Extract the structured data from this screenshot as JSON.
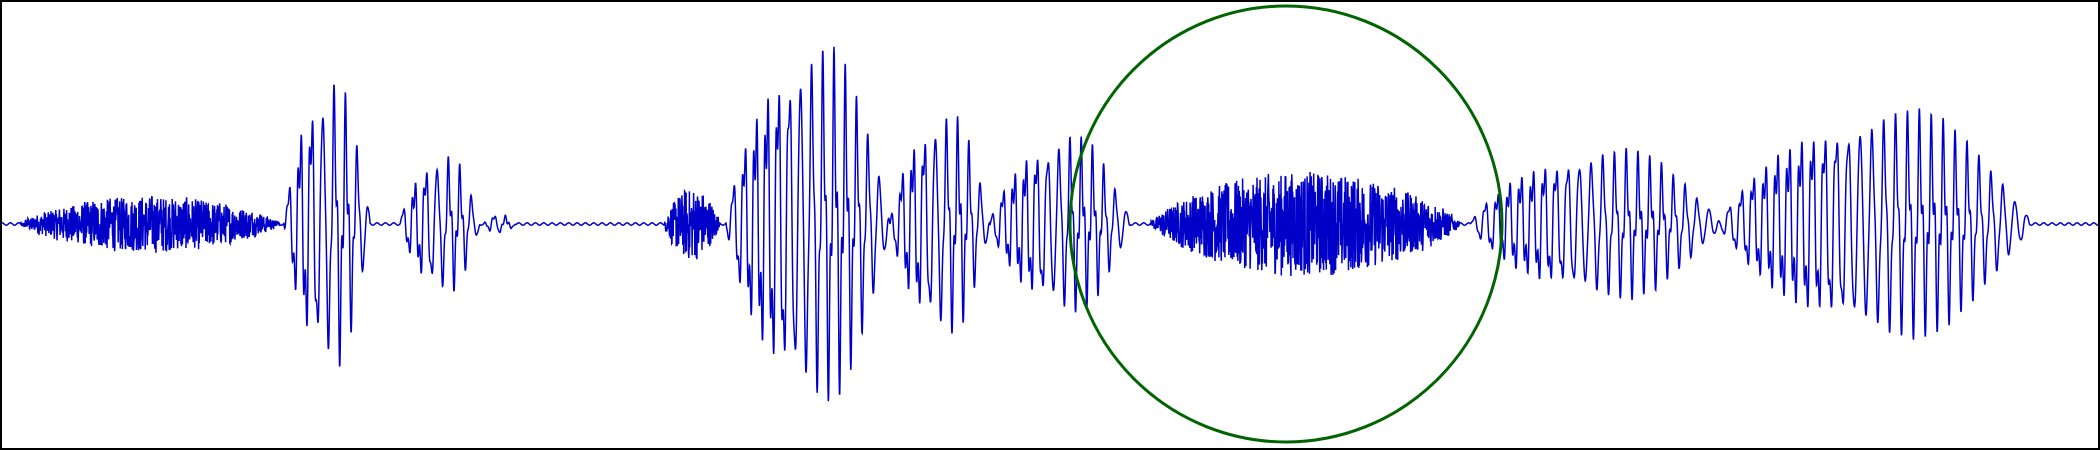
{
  "chart_data": {
    "type": "line",
    "title": "",
    "xlabel": "",
    "ylabel": "",
    "axes_visible": false,
    "frame": true,
    "grid": false,
    "legend": "none",
    "xlim": [
      0,
      1.05
    ],
    "ylim": [
      -1,
      1
    ],
    "series": [
      {
        "color": "#0000c8",
        "segments": [
          {
            "kind": "noise",
            "start": 0.01,
            "end": 0.14,
            "peak": 0.14,
            "freq": 1500
          },
          {
            "kind": "voiced",
            "start": 0.142,
            "end": 0.185,
            "peak": 0.72,
            "freq": 175
          },
          {
            "kind": "voiced",
            "start": 0.2,
            "end": 0.24,
            "peak": 0.35,
            "freq": 175
          },
          {
            "kind": "voiced",
            "start": 0.242,
            "end": 0.258,
            "peak": 0.05,
            "freq": 175
          },
          {
            "kind": "noise",
            "start": 0.332,
            "end": 0.36,
            "peak": 0.18,
            "freq": 1500
          },
          {
            "kind": "voiced",
            "start": 0.363,
            "end": 0.445,
            "peak": 0.9,
            "freq": 178
          },
          {
            "kind": "voiced",
            "start": 0.445,
            "end": 0.495,
            "peak": 0.56,
            "freq": 178
          },
          {
            "kind": "voiced",
            "start": 0.495,
            "end": 0.565,
            "peak": 0.45,
            "freq": 178
          },
          {
            "kind": "noise",
            "start": 0.575,
            "end": 0.73,
            "peak": 0.26,
            "freq": 1500
          },
          {
            "kind": "voiced",
            "start": 0.735,
            "end": 0.86,
            "peak": 0.38,
            "freq": 170
          },
          {
            "kind": "voiced",
            "start": 0.86,
            "end": 1.015,
            "peak": 0.58,
            "freq": 168
          }
        ]
      }
    ],
    "annotations": [
      {
        "shape": "circle",
        "color": "#006400",
        "cx": 0.643,
        "cy": 0.0,
        "r_x": 0.108
      }
    ]
  }
}
